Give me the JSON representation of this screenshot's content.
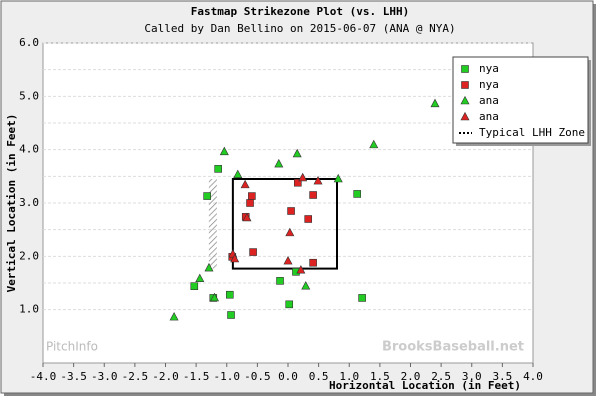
{
  "chart_data": {
    "type": "scatter",
    "title": "Fastmap Strikezone Plot (vs. LHH)",
    "subtitle": "Called by Dan Bellino on 2015-06-07 (ANA @ NYA)",
    "x_label": "Horizontal Location (in Feet)",
    "y_label": "Vertical Location (in Feet)",
    "watermarks": [
      "PitchInfo",
      "BrooksBaseball.net"
    ],
    "xlim": [
      -4,
      4
    ],
    "xticks": [
      {
        "value": -4,
        "label": "-4.0"
      },
      {
        "value": -3.5,
        "label": "-3.5"
      },
      {
        "value": -3,
        "label": "-3.0"
      },
      {
        "value": -2.5,
        "label": "-2.5"
      },
      {
        "value": -2,
        "label": "-2.0"
      },
      {
        "value": -1.5,
        "label": "-1.5"
      },
      {
        "value": -1,
        "label": "-1.0"
      },
      {
        "value": -0.5,
        "label": "-0.5"
      },
      {
        "value": 0,
        "label": "0.0"
      },
      {
        "value": 0.5,
        "label": "0.5"
      },
      {
        "value": 1,
        "label": "1.0"
      },
      {
        "value": 1.5,
        "label": "1.5"
      },
      {
        "value": 2,
        "label": "2.0"
      },
      {
        "value": 2.5,
        "label": "2.5"
      },
      {
        "value": 3,
        "label": "3.0"
      },
      {
        "value": 3.5,
        "label": "3.5"
      },
      {
        "value": 4,
        "label": "4.0"
      }
    ],
    "ylim": [
      0,
      6
    ],
    "yticks": [
      {
        "value": 1,
        "label": "1.0"
      },
      1.5,
      {
        "value": 2,
        "label": "2.0"
      },
      2.5,
      {
        "value": 3,
        "label": "3.0"
      },
      3.5,
      {
        "value": 4,
        "label": "4.0"
      },
      4.5,
      {
        "value": 5,
        "label": "5.0"
      },
      5.5,
      {
        "value": 6,
        "label": "6.0"
      }
    ],
    "grid": true,
    "legend_position": "upper right",
    "series": [
      {
        "name": "nya",
        "color": "#22cc22",
        "marker": "square",
        "x": [
          -1.14,
          -1.32,
          1.13,
          -1.53,
          -1.22,
          -0.95,
          -0.93,
          -0.13,
          0.02,
          1.21,
          0.13
        ],
        "y": [
          3.64,
          3.13,
          3.17,
          1.44,
          1.22,
          1.28,
          0.9,
          1.54,
          1.1,
          1.22,
          1.71
        ]
      },
      {
        "name": "nya",
        "color": "#dd2222",
        "marker": "square",
        "x": [
          -0.59,
          0.16,
          0.41,
          -0.62,
          0.05,
          0.33,
          -0.69,
          -0.57,
          0.41,
          -0.91
        ],
        "y": [
          3.13,
          3.38,
          3.15,
          3.0,
          2.85,
          2.7,
          2.74,
          2.08,
          1.88,
          1.99
        ]
      },
      {
        "name": "ana",
        "color": "#22cc22",
        "marker": "triangle",
        "x": [
          -1.04,
          -0.15,
          0.15,
          1.4,
          2.4,
          -0.82,
          0.82,
          -1.29,
          -1.44,
          -1.2,
          -1.86,
          0.29
        ],
        "y": [
          3.96,
          3.73,
          3.92,
          4.09,
          4.86,
          3.53,
          3.45,
          1.78,
          1.58,
          1.22,
          0.86,
          1.44
        ]
      },
      {
        "name": "ana",
        "color": "#dd2222",
        "marker": "triangle",
        "x": [
          -0.7,
          0.24,
          0.49,
          -0.67,
          0.03,
          -0.9,
          -0.87,
          0.0,
          0.21
        ],
        "y": [
          3.34,
          3.47,
          3.41,
          2.72,
          2.44,
          2.04,
          1.95,
          1.91,
          1.74
        ]
      }
    ],
    "zone": {
      "name": "Typical LHH Zone",
      "x": [
        -0.9,
        0.8
      ],
      "y": [
        1.77,
        3.45
      ]
    }
  }
}
